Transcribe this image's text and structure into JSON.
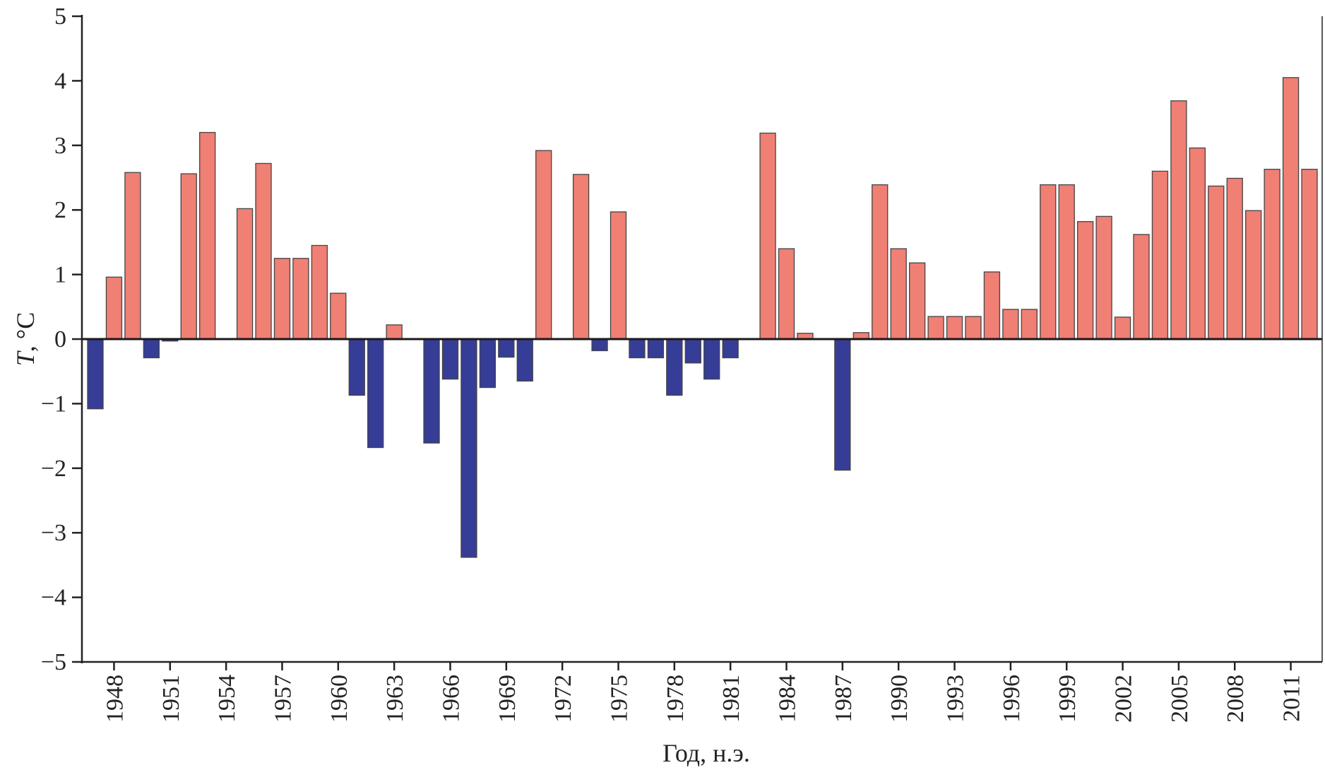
{
  "chart_data": {
    "type": "bar",
    "xlabel": "Год, н.э.",
    "ylabel_var": "T",
    "ylabel_unit": ", °C",
    "ylim": [
      -5,
      5
    ],
    "yticks": [
      5,
      4,
      3,
      2,
      1,
      0,
      -1,
      -2,
      -3,
      -4,
      -5
    ],
    "ytick_labels": [
      "5",
      "4",
      "3",
      "2",
      "1",
      "0",
      "−1",
      "−2",
      "−3",
      "−4",
      "−5"
    ],
    "xtick_labels": [
      "1948",
      "1951",
      "1954",
      "1957",
      "1960",
      "1963",
      "1966",
      "1969",
      "1972",
      "1975",
      "1978",
      "1981",
      "1984",
      "1987",
      "1990",
      "1993",
      "1996",
      "1999",
      "2002",
      "2005",
      "2008",
      "2011"
    ],
    "grid": false,
    "colors": {
      "positive": "#F07F74",
      "negative": "#363D96",
      "edge": "#444444"
    },
    "categories": [
      1947,
      1948,
      1949,
      1950,
      1951,
      1952,
      1953,
      1954,
      1955,
      1956,
      1957,
      1958,
      1959,
      1960,
      1961,
      1962,
      1963,
      1964,
      1965,
      1966,
      1967,
      1968,
      1969,
      1970,
      1971,
      1972,
      1973,
      1974,
      1975,
      1976,
      1977,
      1978,
      1979,
      1980,
      1981,
      1982,
      1983,
      1984,
      1985,
      1986,
      1987,
      1988,
      1989,
      1990,
      1991,
      1992,
      1993,
      1994,
      1995,
      1996,
      1997,
      1998,
      1999,
      2000,
      2001,
      2002,
      2003,
      2004,
      2005,
      2006,
      2007,
      2008,
      2009,
      2010,
      2011,
      2012
    ],
    "values": [
      -1.08,
      0.96,
      2.58,
      -0.29,
      -0.03,
      2.56,
      3.2,
      0,
      2.02,
      2.72,
      1.25,
      1.25,
      1.45,
      0.71,
      -0.87,
      -1.68,
      0.22,
      0,
      -1.61,
      -0.62,
      -3.38,
      -0.75,
      -0.28,
      -0.65,
      2.92,
      0,
      2.55,
      -0.18,
      1.97,
      -0.29,
      -0.29,
      -0.87,
      -0.37,
      -0.62,
      -0.29,
      0,
      3.19,
      1.4,
      0.09,
      0,
      -2.03,
      0.1,
      2.39,
      1.4,
      1.18,
      0.35,
      0.35,
      0.35,
      1.04,
      0.46,
      0.46,
      2.39,
      2.39,
      1.82,
      1.9,
      0.34,
      1.62,
      2.6,
      3.69,
      2.96,
      2.37,
      2.49,
      1.99,
      2.63,
      4.05,
      2.63
    ]
  }
}
